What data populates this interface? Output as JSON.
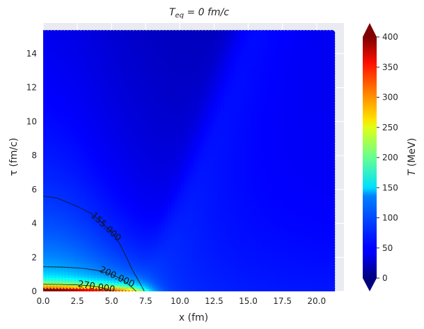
{
  "chart_data": {
    "type": "heatmap",
    "title": "T_eq = 0 fm/c",
    "title_parts": {
      "base": "T",
      "sub": "eq",
      "rest": " = 0 fm/c"
    },
    "xlabel": "x (fm)",
    "ylabel": "τ (fm/c)",
    "xlim": [
      0,
      22.0
    ],
    "ylim": [
      0,
      15.8
    ],
    "x_ticks": [
      "0.0",
      "2.5",
      "5.0",
      "7.5",
      "10.0",
      "12.5",
      "15.0",
      "17.5",
      "20.0"
    ],
    "y_ticks": [
      "0",
      "2",
      "4",
      "6",
      "8",
      "10",
      "12",
      "14"
    ],
    "grid": true,
    "colormap": "jet",
    "colorbar": {
      "label": "T (MeV)",
      "label_parts": {
        "base": "T",
        "rest": " (MeV)"
      },
      "range": [
        0,
        400
      ],
      "ticks": [
        "0",
        "50",
        "100",
        "150",
        "200",
        "250",
        "300",
        "350",
        "400"
      ],
      "extend": "both"
    },
    "contours": [
      {
        "level": 155,
        "label": "155.000",
        "points": [
          [
            0,
            5.6
          ],
          [
            1.0,
            5.5
          ],
          [
            2.5,
            5.0
          ],
          [
            3.5,
            4.6
          ],
          [
            4.2,
            4.1
          ],
          [
            5.0,
            3.5
          ],
          [
            5.6,
            2.8
          ],
          [
            6.1,
            2.0
          ],
          [
            6.5,
            1.3
          ],
          [
            7.0,
            0.6
          ],
          [
            7.4,
            0.0
          ]
        ]
      },
      {
        "level": 200,
        "label": "200.000",
        "points": [
          [
            0,
            1.45
          ],
          [
            1.5,
            1.43
          ],
          [
            3.0,
            1.35
          ],
          [
            4.2,
            1.2
          ],
          [
            5.0,
            1.0
          ],
          [
            5.8,
            0.7
          ],
          [
            6.4,
            0.3
          ],
          [
            6.8,
            0.0
          ]
        ]
      },
      {
        "level": 270,
        "label": "270.000",
        "points": [
          [
            0,
            0.42
          ],
          [
            1.2,
            0.41
          ],
          [
            2.5,
            0.38
          ],
          [
            3.5,
            0.32
          ],
          [
            4.3,
            0.22
          ],
          [
            4.8,
            0.08
          ],
          [
            5.0,
            0.0
          ]
        ]
      }
    ]
  }
}
